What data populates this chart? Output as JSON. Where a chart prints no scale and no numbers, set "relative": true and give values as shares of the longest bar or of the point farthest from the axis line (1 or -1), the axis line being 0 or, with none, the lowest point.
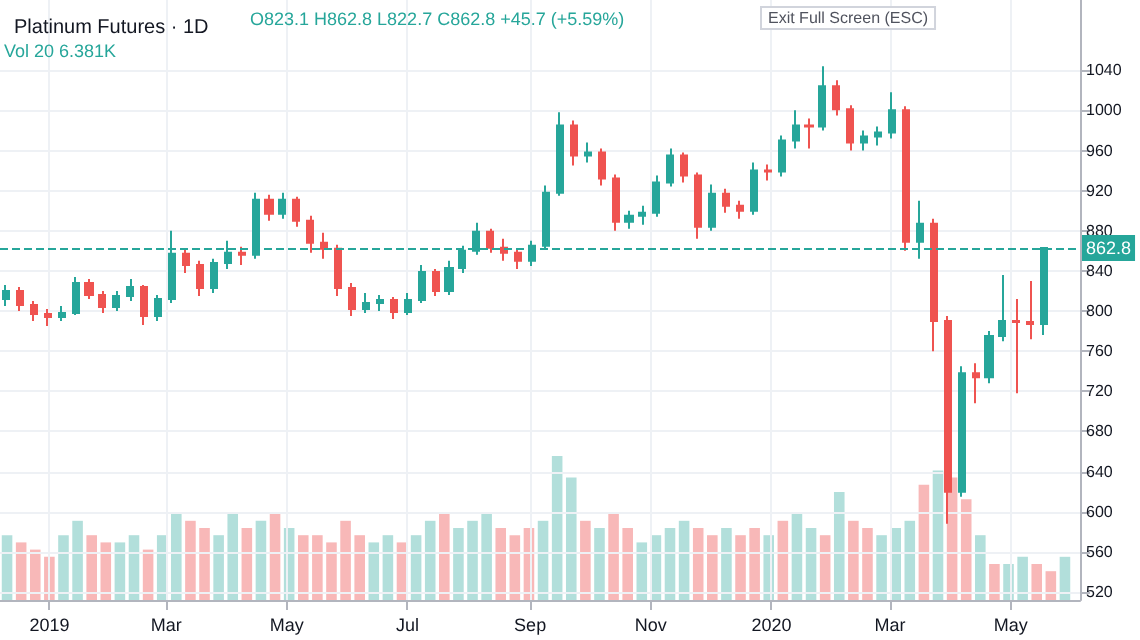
{
  "chart_data": [
    {
      "type": "candlestick",
      "title": "Platinum Futures · 1D",
      "annotations": [
        "O823.1 H862.8 L822.7 C862.8 +45.7 (+5.59%)",
        "Vol 20 6.381K",
        "Exit Full Screen (ESC)"
      ],
      "x": [
        "2018-12-10",
        "2018-12-17",
        "2018-12-24",
        "2018-12-31",
        "2019-01-07",
        "2019-01-14",
        "2019-01-21",
        "2019-01-28",
        "2019-02-04",
        "2019-02-11",
        "2019-02-18",
        "2019-02-25",
        "2019-03-04",
        "2019-03-11",
        "2019-03-18",
        "2019-03-25",
        "2019-04-01",
        "2019-04-08",
        "2019-04-15",
        "2019-04-22",
        "2019-04-29",
        "2019-05-06",
        "2019-05-13",
        "2019-05-20",
        "2019-05-27",
        "2019-06-03",
        "2019-06-10",
        "2019-06-17",
        "2019-06-24",
        "2019-07-01",
        "2019-07-08",
        "2019-07-15",
        "2019-07-22",
        "2019-07-29",
        "2019-08-05",
        "2019-08-12",
        "2019-08-19",
        "2019-08-26",
        "2019-09-02",
        "2019-09-09",
        "2019-09-16",
        "2019-09-23",
        "2019-09-30",
        "2019-10-07",
        "2019-10-14",
        "2019-10-21",
        "2019-10-28",
        "2019-11-04",
        "2019-11-11",
        "2019-11-18",
        "2019-11-25",
        "2019-12-02",
        "2019-12-09",
        "2019-12-16",
        "2019-12-23",
        "2019-12-30",
        "2020-01-06",
        "2020-01-13",
        "2020-01-20",
        "2020-01-27",
        "2020-02-03",
        "2020-02-10",
        "2020-02-17",
        "2020-02-24",
        "2020-03-02",
        "2020-03-09",
        "2020-03-16",
        "2020-03-23",
        "2020-03-30",
        "2020-04-06",
        "2020-04-13",
        "2020-04-20",
        "2020-04-27",
        "2020-05-04",
        "2020-05-11",
        "2020-05-18"
      ],
      "ohlc": [
        [
          812,
          826,
          805,
          820
        ],
        [
          820,
          824,
          800,
          806
        ],
        [
          806,
          810,
          790,
          797
        ],
        [
          797,
          802,
          785,
          794
        ],
        [
          794,
          805,
          790,
          798
        ],
        [
          798,
          834,
          796,
          828
        ],
        [
          828,
          832,
          812,
          816
        ],
        [
          816,
          820,
          798,
          804
        ],
        [
          804,
          820,
          800,
          815
        ],
        [
          815,
          832,
          810,
          824
        ],
        [
          824,
          826,
          786,
          795
        ],
        [
          795,
          816,
          790,
          812
        ],
        [
          812,
          880,
          808,
          857
        ],
        [
          857,
          862,
          838,
          846
        ],
        [
          846,
          850,
          815,
          823
        ],
        [
          823,
          852,
          818,
          848
        ],
        [
          848,
          870,
          842,
          858
        ],
        [
          858,
          864,
          846,
          856
        ],
        [
          856,
          918,
          852,
          911
        ],
        [
          911,
          916,
          890,
          897
        ],
        [
          897,
          918,
          892,
          911
        ],
        [
          911,
          914,
          884,
          890
        ],
        [
          890,
          895,
          858,
          868
        ],
        [
          868,
          878,
          852,
          862
        ],
        [
          862,
          866,
          815,
          823
        ],
        [
          823,
          828,
          795,
          802
        ],
        [
          802,
          818,
          798,
          808
        ],
        [
          808,
          816,
          800,
          811
        ],
        [
          811,
          814,
          792,
          799
        ],
        [
          799,
          818,
          796,
          811
        ],
        [
          811,
          846,
          808,
          839
        ],
        [
          839,
          842,
          815,
          820
        ],
        [
          820,
          850,
          816,
          843
        ],
        [
          843,
          865,
          838,
          860
        ],
        [
          860,
          888,
          856,
          879
        ],
        [
          879,
          882,
          858,
          863
        ],
        [
          863,
          872,
          850,
          858
        ],
        [
          858,
          862,
          842,
          850
        ],
        [
          850,
          870,
          845,
          865
        ],
        [
          865,
          925,
          862,
          918
        ],
        [
          918,
          998,
          915,
          985
        ],
        [
          985,
          990,
          945,
          955
        ],
        [
          955,
          968,
          948,
          958
        ],
        [
          958,
          962,
          925,
          932
        ],
        [
          932,
          936,
          880,
          889
        ],
        [
          889,
          900,
          882,
          895
        ],
        [
          895,
          905,
          886,
          898
        ],
        [
          898,
          935,
          894,
          928
        ],
        [
          928,
          962,
          924,
          955
        ],
        [
          955,
          958,
          928,
          935
        ],
        [
          935,
          938,
          872,
          884
        ],
        [
          884,
          926,
          880,
          917
        ],
        [
          917,
          922,
          898,
          905
        ],
        [
          905,
          910,
          892,
          900
        ],
        [
          900,
          948,
          896,
          940
        ],
        [
          940,
          946,
          930,
          939
        ],
        [
          939,
          975,
          934,
          970
        ],
        [
          970,
          1000,
          962,
          985
        ],
        [
          985,
          992,
          962,
          984
        ],
        [
          984,
          1044,
          980,
          1024
        ],
        [
          1024,
          1030,
          995,
          1001
        ],
        [
          1001,
          1005,
          960,
          968
        ],
        [
          968,
          980,
          960,
          974
        ],
        [
          974,
          984,
          965,
          978
        ],
        [
          978,
          1018,
          972,
          1000
        ],
        [
          1000,
          1004,
          860,
          869
        ],
        [
          869,
          910,
          852,
          887
        ],
        [
          887,
          892,
          760,
          790
        ],
        [
          790,
          795,
          588,
          620
        ],
        [
          620,
          745,
          615,
          738
        ],
        [
          738,
          748,
          708,
          734
        ],
        [
          734,
          780,
          728,
          775
        ],
        [
          775,
          836,
          770,
          790
        ],
        [
          790,
          812,
          718,
          789
        ],
        [
          789,
          830,
          772,
          787
        ],
        [
          787,
          862.8,
          776,
          862.8
        ]
      ],
      "colors": [
        "#26a69a",
        "#ef5350",
        "#ef5350",
        "#ef5350",
        "#26a69a",
        "#26a69a",
        "#ef5350",
        "#ef5350",
        "#26a69a",
        "#26a69a",
        "#ef5350",
        "#26a69a",
        "#26a69a",
        "#ef5350",
        "#ef5350",
        "#26a69a",
        "#26a69a",
        "#ef5350",
        "#26a69a",
        "#ef5350",
        "#26a69a",
        "#ef5350",
        "#ef5350",
        "#ef5350",
        "#ef5350",
        "#ef5350",
        "#26a69a",
        "#26a69a",
        "#ef5350",
        "#26a69a",
        "#26a69a",
        "#ef5350",
        "#26a69a",
        "#26a69a",
        "#26a69a",
        "#ef5350",
        "#ef5350",
        "#ef5350",
        "#26a69a",
        "#26a69a",
        "#26a69a",
        "#ef5350",
        "#26a69a",
        "#ef5350",
        "#ef5350",
        "#26a69a",
        "#26a69a",
        "#26a69a",
        "#26a69a",
        "#ef5350",
        "#ef5350",
        "#26a69a",
        "#ef5350",
        "#ef5350",
        "#26a69a",
        "#ef5350",
        "#26a69a",
        "#26a69a",
        "#ef5350",
        "#26a69a",
        "#ef5350",
        "#ef5350",
        "#26a69a",
        "#26a69a",
        "#26a69a",
        "#ef5350",
        "#26a69a",
        "#ef5350",
        "#ef5350",
        "#26a69a",
        "#ef5350",
        "#26a69a",
        "#26a69a",
        "#ef5350",
        "#ef5350",
        "#26a69a"
      ],
      "xlim": [
        "2018-12-07",
        "2020-06-05"
      ],
      "xticks": [
        {
          "value": "2019-01-01",
          "label": "2019"
        },
        {
          "value": "2019-03-01",
          "label": "Mar"
        },
        {
          "value": "2019-05-01",
          "label": "May"
        },
        {
          "value": "2019-07-01",
          "label": "Jul"
        },
        {
          "value": "2019-09-01",
          "label": "Sep"
        },
        {
          "value": "2019-11-01",
          "label": "Nov"
        },
        {
          "value": "2020-01-01",
          "label": "2020"
        },
        {
          "value": "2020-03-01",
          "label": "Mar"
        },
        {
          "value": "2020-05-01",
          "label": "May"
        }
      ],
      "ylim": [
        512,
        1110
      ],
      "yticks": [
        520,
        560,
        600,
        640,
        680,
        720,
        760,
        800,
        840,
        880,
        920,
        960,
        1000,
        1040
      ],
      "grid": true,
      "ref_lines": [
        {
          "axis": "y",
          "value": 862.8,
          "label": "862.8",
          "color": "#26a69a",
          "line_style": "dashed"
        }
      ]
    },
    {
      "type": "bar",
      "relative": true,
      "categories": [
        null,
        null,
        null,
        null,
        null,
        null,
        null,
        null,
        null,
        null,
        null,
        null,
        null,
        null,
        null,
        null,
        null,
        null,
        null,
        null,
        null,
        null,
        null,
        null,
        null,
        null,
        null,
        null,
        null,
        null,
        null,
        null,
        null,
        null,
        null,
        null,
        null,
        null,
        null,
        null,
        null,
        null,
        null,
        null,
        null,
        null,
        null,
        null,
        null,
        null,
        null,
        null,
        null,
        null,
        null,
        null,
        null,
        null,
        null,
        null,
        null,
        null,
        null,
        null,
        null,
        null,
        null,
        null,
        null,
        null,
        null,
        null,
        null,
        null,
        null,
        null
      ],
      "values": [
        0.45,
        0.4,
        0.35,
        0.3,
        0.45,
        0.55,
        0.45,
        0.4,
        0.4,
        0.45,
        0.35,
        0.45,
        0.6,
        0.55,
        0.5,
        0.45,
        0.6,
        0.5,
        0.55,
        0.6,
        0.5,
        0.45,
        0.45,
        0.4,
        0.55,
        0.45,
        0.4,
        0.45,
        0.4,
        0.45,
        0.55,
        0.6,
        0.5,
        0.55,
        0.6,
        0.5,
        0.45,
        0.5,
        0.55,
        1.0,
        0.85,
        0.55,
        0.5,
        0.6,
        0.5,
        0.4,
        0.45,
        0.5,
        0.55,
        0.5,
        0.45,
        0.5,
        0.45,
        0.5,
        0.45,
        0.55,
        0.6,
        0.5,
        0.45,
        0.75,
        0.55,
        0.5,
        0.45,
        0.5,
        0.55,
        0.8,
        0.9,
        0.85,
        0.7,
        0.45,
        0.25,
        0.25,
        0.3,
        0.25,
        0.2,
        0.3
      ],
      "colors": [
        "#b2dfdb",
        "#f8b8b8",
        "#f8b8b8",
        "#f8b8b8",
        "#b2dfdb",
        "#b2dfdb",
        "#f8b8b8",
        "#f8b8b8",
        "#b2dfdb",
        "#b2dfdb",
        "#f8b8b8",
        "#b2dfdb",
        "#b2dfdb",
        "#f8b8b8",
        "#f8b8b8",
        "#b2dfdb",
        "#b2dfdb",
        "#f8b8b8",
        "#b2dfdb",
        "#f8b8b8",
        "#b2dfdb",
        "#f8b8b8",
        "#f8b8b8",
        "#f8b8b8",
        "#f8b8b8",
        "#f8b8b8",
        "#b2dfdb",
        "#b2dfdb",
        "#f8b8b8",
        "#b2dfdb",
        "#b2dfdb",
        "#f8b8b8",
        "#b2dfdb",
        "#b2dfdb",
        "#b2dfdb",
        "#f8b8b8",
        "#f8b8b8",
        "#f8b8b8",
        "#b2dfdb",
        "#b2dfdb",
        "#b2dfdb",
        "#f8b8b8",
        "#b2dfdb",
        "#f8b8b8",
        "#f8b8b8",
        "#b2dfdb",
        "#b2dfdb",
        "#b2dfdb",
        "#b2dfdb",
        "#f8b8b8",
        "#f8b8b8",
        "#b2dfdb",
        "#f8b8b8",
        "#f8b8b8",
        "#b2dfdb",
        "#f8b8b8",
        "#b2dfdb",
        "#b2dfdb",
        "#f8b8b8",
        "#b2dfdb",
        "#f8b8b8",
        "#f8b8b8",
        "#b2dfdb",
        "#b2dfdb",
        "#b2dfdb",
        "#f8b8b8",
        "#b2dfdb",
        "#f8b8b8",
        "#f8b8b8",
        "#b2dfdb",
        "#f8b8b8",
        "#b2dfdb",
        "#b2dfdb",
        "#f8b8b8",
        "#f8b8b8",
        "#b2dfdb"
      ]
    }
  ]
}
